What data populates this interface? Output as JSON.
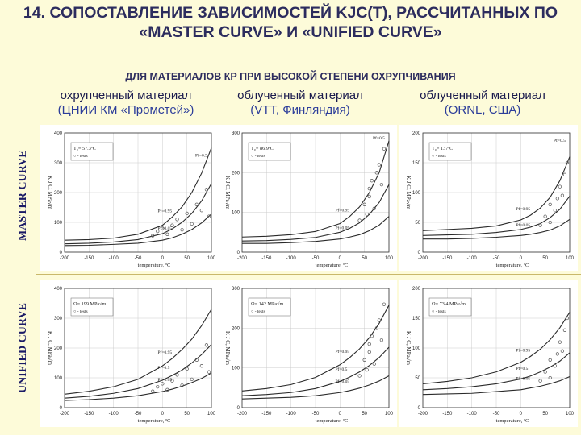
{
  "title": "14. СОПОСТАВЛЕНИЕ ЗАВИСИМОСТЕЙ KJC(T), РАССЧИТАННЫХ ПО «MASTER CURVE» И «UNIFIED CURVE»",
  "subtitle": "ДЛЯ МАТЕРИАЛОВ КР ПРИ ВЫСОКОЙ СТЕПЕНИ ОХРУПЧИВАНИЯ",
  "columns": [
    {
      "line1": "охрупченный материал",
      "line2": "(ЦНИИ КМ «Прометей»)"
    },
    {
      "line1": "облученный материал",
      "line2": "(VTT, Финляндия)"
    },
    {
      "line1": "облученный материал",
      "line2": "(ORNL, США)"
    }
  ],
  "rows": [
    "MASTER CURVE",
    "UNIFIED CURVE"
  ],
  "colors": {
    "curve": "#2a2a2a",
    "points": "#555555",
    "axis": "#333333"
  },
  "chart_data": [
    {
      "type": "line",
      "row": "MASTER CURVE",
      "col": 1,
      "xlabel": "temperature, ºC",
      "ylabel": "K J C, MPa√m",
      "xlim": [
        -200,
        100
      ],
      "ylim": [
        0,
        400
      ],
      "xticks": [
        -200,
        -150,
        -100,
        -50,
        0,
        50,
        100
      ],
      "yticks": [
        0,
        100,
        200,
        300,
        400
      ],
      "param_label": "T₀= 57.3ºC",
      "tests_label": "○ - tests",
      "series": [
        {
          "name": "Pf=0.95",
          "label": "Pf=0.95",
          "x": [
            -200,
            -150,
            -100,
            -50,
            0,
            20,
            40,
            60,
            80,
            100
          ],
          "values": [
            40,
            42,
            47,
            60,
            90,
            118,
            152,
            200,
            265,
            350
          ]
        },
        {
          "name": "",
          "x": [
            -200,
            -150,
            -100,
            -50,
            0,
            20,
            40,
            60,
            80,
            100
          ],
          "values": [
            28,
            30,
            34,
            42,
            62,
            78,
            100,
            130,
            172,
            230
          ]
        },
        {
          "name": "Pf=0.05",
          "label": "Pf=0.05",
          "x": [
            -200,
            -150,
            -100,
            -50,
            0,
            20,
            40,
            60,
            80,
            100
          ],
          "values": [
            22,
            23,
            26,
            30,
            40,
            48,
            60,
            76,
            98,
            128
          ]
        }
      ],
      "tests": {
        "x": [
          -20,
          -10,
          0,
          10,
          20,
          30,
          40,
          50,
          60,
          70,
          80,
          90,
          95
        ],
        "values": [
          55,
          70,
          80,
          60,
          90,
          110,
          75,
          130,
          95,
          160,
          140,
          210,
          120
        ]
      },
      "annotations": [
        {
          "text": "Pf=0.5",
          "x": 70,
          "y": 320
        }
      ]
    },
    {
      "type": "line",
      "row": "MASTER CURVE",
      "col": 2,
      "xlabel": "temperature, ºC",
      "ylabel": "K J C, MPa√m",
      "xlim": [
        -200,
        100
      ],
      "ylim": [
        0,
        300
      ],
      "xticks": [
        -200,
        -150,
        -100,
        -50,
        0,
        50,
        100
      ],
      "yticks": [
        0,
        100,
        200,
        300
      ],
      "param_label": "T₀= 86.9ºC",
      "tests_label": "○ - tests",
      "series": [
        {
          "name": "Pf=0.95",
          "label": "Pf=0.95",
          "x": [
            -200,
            -150,
            -100,
            -50,
            0,
            20,
            40,
            60,
            80,
            100
          ],
          "values": [
            38,
            40,
            44,
            52,
            72,
            90,
            114,
            150,
            200,
            280
          ]
        },
        {
          "name": "",
          "x": [
            -200,
            -150,
            -100,
            -50,
            0,
            20,
            40,
            60,
            80,
            100
          ],
          "values": [
            28,
            29,
            32,
            37,
            50,
            60,
            74,
            95,
            125,
            170
          ]
        },
        {
          "name": "Pf=0.05",
          "label": "Pf=0.05",
          "x": [
            -200,
            -150,
            -100,
            -50,
            0,
            20,
            40,
            60,
            80,
            100
          ],
          "values": [
            22,
            22,
            24,
            27,
            33,
            38,
            44,
            54,
            68,
            90
          ]
        }
      ],
      "tests": {
        "x": [
          40,
          50,
          55,
          60,
          60,
          65,
          70,
          75,
          80,
          85,
          90
        ],
        "values": [
          80,
          120,
          95,
          160,
          140,
          180,
          110,
          200,
          220,
          170,
          260
        ]
      },
      "annotations": [
        {
          "text": "Pf=0.5",
          "x": 80,
          "y": 290
        }
      ]
    },
    {
      "type": "line",
      "row": "MASTER CURVE",
      "col": 3,
      "xlabel": "temperature, ºC",
      "ylabel": "K J C, MPa√m",
      "xlim": [
        -200,
        100
      ],
      "ylim": [
        0,
        200
      ],
      "xticks": [
        -200,
        -150,
        -100,
        -50,
        0,
        50,
        100
      ],
      "yticks": [
        0,
        50,
        100,
        150,
        200
      ],
      "param_label": "T₀= 137ºC",
      "tests_label": "○ - tests",
      "series": [
        {
          "name": "Pf=0.95",
          "label": "Pf=0.95",
          "x": [
            -200,
            -150,
            -100,
            -50,
            0,
            20,
            40,
            60,
            80,
            100
          ],
          "values": [
            36,
            38,
            40,
            44,
            54,
            62,
            74,
            92,
            120,
            160
          ]
        },
        {
          "name": "",
          "x": [
            -200,
            -150,
            -100,
            -50,
            0,
            20,
            40,
            60,
            80,
            100
          ],
          "values": [
            28,
            29,
            30,
            33,
            38,
            42,
            48,
            58,
            72,
            94
          ]
        },
        {
          "name": "Pf=0.05",
          "label": "Pf=0.05",
          "x": [
            -200,
            -150,
            -100,
            -50,
            0,
            20,
            40,
            60,
            80,
            100
          ],
          "values": [
            22,
            22,
            23,
            25,
            28,
            30,
            33,
            37,
            44,
            55
          ]
        }
      ],
      "tests": {
        "x": [
          40,
          50,
          60,
          60,
          70,
          75,
          80,
          85,
          90,
          95
        ],
        "values": [
          45,
          60,
          50,
          80,
          70,
          90,
          110,
          95,
          130,
          150
        ]
      },
      "annotations": [
        {
          "text": "Pf=0.5",
          "x": 85,
          "y": 185
        }
      ]
    },
    {
      "type": "line",
      "row": "UNIFIED CURVE",
      "col": 1,
      "xlabel": "temperature, ºC",
      "ylabel": "K J C, MPa√m",
      "xlim": [
        -200,
        100
      ],
      "ylim": [
        0,
        400
      ],
      "xticks": [
        -200,
        -150,
        -100,
        -50,
        0,
        50,
        100
      ],
      "yticks": [
        0,
        100,
        200,
        300,
        400
      ],
      "param_label": "Ω= 199 MPa√m",
      "tests_label": "○ - tests",
      "series": [
        {
          "name": "Pf=0.95",
          "label": "Pf=0.95",
          "x": [
            -200,
            -150,
            -100,
            -50,
            0,
            20,
            40,
            60,
            80,
            100
          ],
          "values": [
            45,
            55,
            70,
            95,
            140,
            165,
            195,
            230,
            275,
            330
          ]
        },
        {
          "name": "Pf=0.5",
          "label": "Pf=0.5",
          "x": [
            -200,
            -150,
            -100,
            -50,
            0,
            20,
            40,
            60,
            80,
            100
          ],
          "values": [
            32,
            38,
            48,
            64,
            92,
            108,
            126,
            150,
            178,
            212
          ]
        },
        {
          "name": "Pf=0.05",
          "label": "Pf=0.05",
          "x": [
            -200,
            -150,
            -100,
            -50,
            0,
            20,
            40,
            60,
            80,
            100
          ],
          "values": [
            24,
            27,
            32,
            40,
            54,
            62,
            72,
            84,
            98,
            116
          ]
        }
      ],
      "tests": {
        "x": [
          -20,
          -10,
          0,
          10,
          20,
          30,
          40,
          50,
          60,
          70,
          80,
          90,
          95
        ],
        "values": [
          55,
          70,
          80,
          60,
          90,
          110,
          75,
          130,
          95,
          160,
          140,
          210,
          120
        ]
      },
      "annotations": []
    },
    {
      "type": "line",
      "row": "UNIFIED CURVE",
      "col": 2,
      "xlabel": "temperature, ºC",
      "ylabel": "K J C, MPa√m",
      "xlim": [
        -200,
        100
      ],
      "ylim": [
        0,
        300
      ],
      "xticks": [
        -200,
        -150,
        -100,
        -50,
        0,
        50,
        100
      ],
      "yticks": [
        0,
        100,
        200,
        300
      ],
      "param_label": "Ω= 142 MPa√m",
      "tests_label": "○ - tests",
      "series": [
        {
          "name": "Pf=0.95",
          "label": "Pf=0.95",
          "x": [
            -200,
            -150,
            -100,
            -50,
            0,
            20,
            40,
            60,
            80,
            100
          ],
          "values": [
            42,
            48,
            58,
            76,
            108,
            126,
            148,
            176,
            212,
            258
          ]
        },
        {
          "name": "Pf=0.5",
          "label": "Pf=0.5",
          "x": [
            -200,
            -150,
            -100,
            -50,
            0,
            20,
            40,
            60,
            80,
            100
          ],
          "values": [
            30,
            33,
            38,
            48,
            66,
            77,
            90,
            106,
            126,
            152
          ]
        },
        {
          "name": "Pf=0.05",
          "label": "Pf=0.05",
          "x": [
            -200,
            -150,
            -100,
            -50,
            0,
            20,
            40,
            60,
            80,
            100
          ],
          "values": [
            22,
            24,
            26,
            30,
            38,
            43,
            49,
            57,
            67,
            80
          ]
        }
      ],
      "tests": {
        "x": [
          40,
          50,
          55,
          60,
          60,
          65,
          70,
          75,
          80,
          85,
          90
        ],
        "values": [
          80,
          120,
          95,
          160,
          140,
          180,
          110,
          200,
          220,
          170,
          260
        ]
      },
      "annotations": []
    },
    {
      "type": "line",
      "row": "UNIFIED CURVE",
      "col": 3,
      "xlabel": "temperature, ºC",
      "ylabel": "K J C, MPa√m",
      "xlim": [
        -200,
        100
      ],
      "ylim": [
        0,
        200
      ],
      "xticks": [
        -200,
        -150,
        -100,
        -50,
        0,
        50,
        100
      ],
      "yticks": [
        0,
        50,
        100,
        150,
        200
      ],
      "param_label": "Ω= 73.4 MPa√m",
      "tests_label": "○ - tests",
      "series": [
        {
          "name": "Pf=0.95",
          "label": "Pf=0.95",
          "x": [
            -200,
            -150,
            -100,
            -50,
            0,
            20,
            40,
            60,
            80,
            100
          ],
          "values": [
            40,
            44,
            50,
            60,
            76,
            86,
            98,
            114,
            134,
            160
          ]
        },
        {
          "name": "Pf=0.5",
          "label": "Pf=0.5",
          "x": [
            -200,
            -150,
            -100,
            -50,
            0,
            20,
            40,
            60,
            80,
            100
          ],
          "values": [
            30,
            32,
            35,
            40,
            48,
            53,
            60,
            68,
            78,
            92
          ]
        },
        {
          "name": "Pf=0.05",
          "label": "Pf=0.05",
          "x": [
            -200,
            -150,
            -100,
            -50,
            0,
            20,
            40,
            60,
            80,
            100
          ],
          "values": [
            22,
            23,
            24,
            27,
            30,
            33,
            36,
            40,
            45,
            52
          ]
        }
      ],
      "tests": {
        "x": [
          40,
          50,
          60,
          60,
          70,
          75,
          80,
          85,
          90,
          95
        ],
        "values": [
          45,
          60,
          50,
          80,
          70,
          90,
          110,
          95,
          130,
          150
        ]
      },
      "annotations": []
    }
  ]
}
